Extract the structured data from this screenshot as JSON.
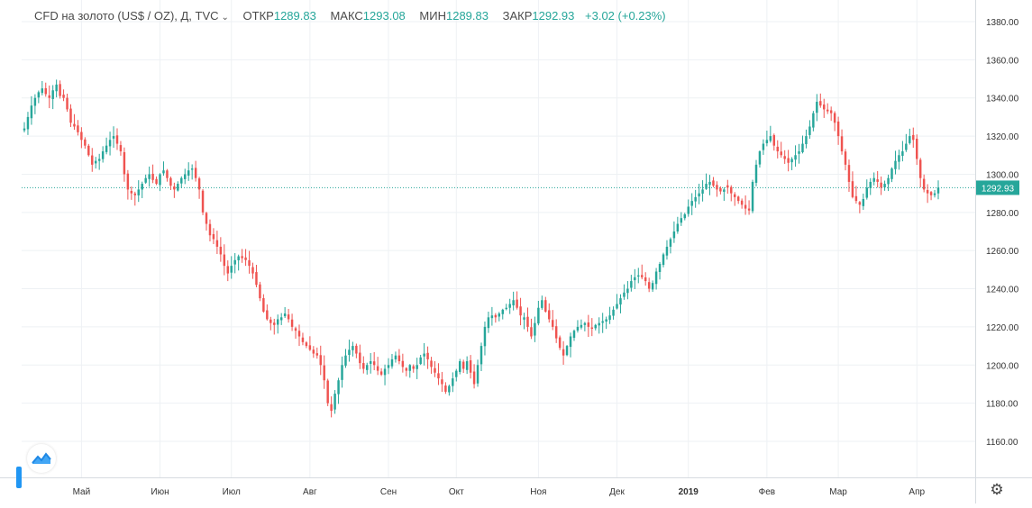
{
  "legend": {
    "symbol": "CFD на золото (US$ / OZ), Д, TVC",
    "chevron_icon": "chevron-down-icon",
    "open_label": "ОТКР",
    "open_value": "1289.83",
    "high_label": "МАКС",
    "high_value": "1293.08",
    "low_label": "МИН",
    "low_value": "1289.83",
    "close_label": "ЗАКР",
    "close_value": "1292.93",
    "change": "+3.02 (+0.23%)"
  },
  "price_tag": "1292.93",
  "settings_icon": "gear-icon",
  "logo_icon": "tradingview-logo-icon",
  "colors": {
    "up": "#26a69a",
    "down": "#ef5350",
    "grid": "#eef1f4",
    "axis_text": "#333333",
    "price_line": "#26a69a"
  },
  "chart_data": {
    "type": "candlestick",
    "title": "CFD на золото (US$ / OZ), Д, TVC",
    "ylim": [
      1140,
      1385
    ],
    "y_ticks": [
      1160,
      1180,
      1200,
      1220,
      1240,
      1260,
      1280,
      1300,
      1320,
      1340,
      1360,
      1380
    ],
    "y_tick_labels": [
      "1160.00",
      "1180.00",
      "1200.00",
      "1220.00",
      "1240.00",
      "1260.00",
      "1280.00",
      "1300.00",
      "1320.00",
      "1340.00",
      "1360.00",
      "1380.00"
    ],
    "x_ticks": [
      {
        "label": "Май",
        "index": 16
      },
      {
        "label": "Июн",
        "index": 38
      },
      {
        "label": "Июл",
        "index": 58
      },
      {
        "label": "Авг",
        "index": 80
      },
      {
        "label": "Сен",
        "index": 102
      },
      {
        "label": "Окт",
        "index": 121
      },
      {
        "label": "Ноя",
        "index": 144
      },
      {
        "label": "Дек",
        "index": 166
      },
      {
        "label": "2019",
        "index": 186
      },
      {
        "label": "Фев",
        "index": 208
      },
      {
        "label": "Мар",
        "index": 228
      },
      {
        "label": "Апр",
        "index": 250
      }
    ],
    "last_price": 1292.93,
    "closes": [
      1324,
      1330,
      1336,
      1340,
      1343,
      1345,
      1342,
      1340,
      1344,
      1347,
      1341,
      1340,
      1334,
      1327,
      1325,
      1322,
      1318,
      1315,
      1310,
      1305,
      1307,
      1308,
      1312,
      1315,
      1318,
      1320,
      1316,
      1312,
      1300,
      1292,
      1290,
      1289,
      1292,
      1295,
      1298,
      1300,
      1297,
      1295,
      1300,
      1302,
      1298,
      1294,
      1292,
      1295,
      1298,
      1300,
      1302,
      1303,
      1298,
      1292,
      1280,
      1274,
      1268,
      1266,
      1262,
      1258,
      1252,
      1248,
      1252,
      1255,
      1257,
      1256,
      1255,
      1252,
      1248,
      1242,
      1235,
      1228,
      1224,
      1222,
      1221,
      1224,
      1225,
      1227,
      1224,
      1220,
      1218,
      1215,
      1212,
      1210,
      1208,
      1206,
      1205,
      1200,
      1192,
      1180,
      1176,
      1185,
      1192,
      1200,
      1205,
      1208,
      1210,
      1206,
      1201,
      1198,
      1200,
      1202,
      1200,
      1197,
      1195,
      1198,
      1200,
      1203,
      1205,
      1202,
      1199,
      1197,
      1200,
      1198,
      1200,
      1204,
      1206,
      1203,
      1199,
      1196,
      1193,
      1190,
      1186,
      1189,
      1193,
      1197,
      1202,
      1198,
      1202,
      1196,
      1190,
      1200,
      1210,
      1220,
      1225,
      1226,
      1225,
      1227,
      1229,
      1230,
      1232,
      1234,
      1230,
      1226,
      1225,
      1220,
      1215,
      1222,
      1230,
      1234,
      1228,
      1224,
      1220,
      1214,
      1209,
      1205,
      1210,
      1215,
      1218,
      1220,
      1221,
      1222,
      1220,
      1219,
      1221,
      1222,
      1223,
      1224,
      1226,
      1229,
      1232,
      1235,
      1238,
      1240,
      1244,
      1246,
      1247,
      1246,
      1244,
      1240,
      1243,
      1249,
      1253,
      1258,
      1262,
      1266,
      1270,
      1274,
      1277,
      1279,
      1283,
      1286,
      1288,
      1290,
      1292,
      1295,
      1296,
      1294,
      1292,
      1291,
      1292,
      1293,
      1290,
      1288,
      1286,
      1284,
      1282,
      1281,
      1296,
      1305,
      1312,
      1316,
      1318,
      1320,
      1315,
      1312,
      1310,
      1308,
      1306,
      1308,
      1310,
      1312,
      1316,
      1320,
      1325,
      1332,
      1338,
      1336,
      1334,
      1333,
      1332,
      1327,
      1320,
      1312,
      1305,
      1296,
      1288,
      1286,
      1284,
      1287,
      1293,
      1296,
      1298,
      1296,
      1293,
      1295,
      1298,
      1303,
      1307,
      1310,
      1312,
      1316,
      1320,
      1318,
      1308,
      1298,
      1292,
      1290,
      1289,
      1290,
      1293
    ]
  }
}
